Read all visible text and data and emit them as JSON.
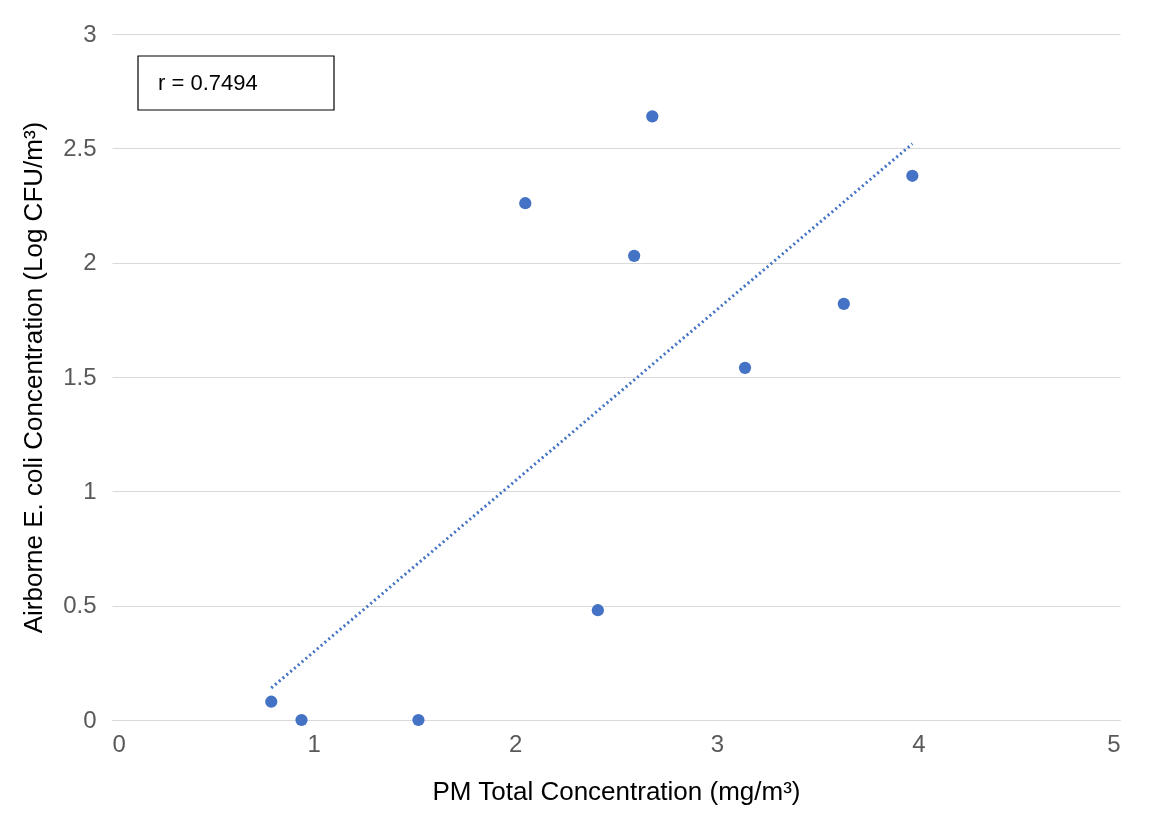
{
  "chart_data": {
    "type": "scatter",
    "xlabel": "PM Total Concentration (mg/m³)",
    "ylabel": "Airborne E. coli Concentration (Log CFU/m³)",
    "annotations": [
      "r = 0.7494"
    ],
    "xlim": [
      0,
      5
    ],
    "xticks": [
      0,
      1,
      2,
      3,
      4,
      5
    ],
    "ylim": [
      0,
      3
    ],
    "yticks": [
      0,
      0.5,
      1,
      1.5,
      2,
      2.5,
      3
    ],
    "grid": "y",
    "series": [
      {
        "marker": "circle",
        "color": "#4472c4",
        "x": [
          0.79,
          0.94,
          1.52,
          2.05,
          2.41,
          2.59,
          2.68,
          3.14,
          3.63,
          3.97
        ],
        "values": [
          0.08,
          0,
          0,
          2.26,
          0.48,
          2.03,
          2.64,
          1.54,
          1.82,
          2.38
        ]
      },
      {
        "type": "line",
        "color": "#4472c4",
        "line_style": "dotted",
        "x": [
          0.79,
          3.97
        ],
        "values": [
          0.14,
          2.52
        ]
      }
    ]
  }
}
